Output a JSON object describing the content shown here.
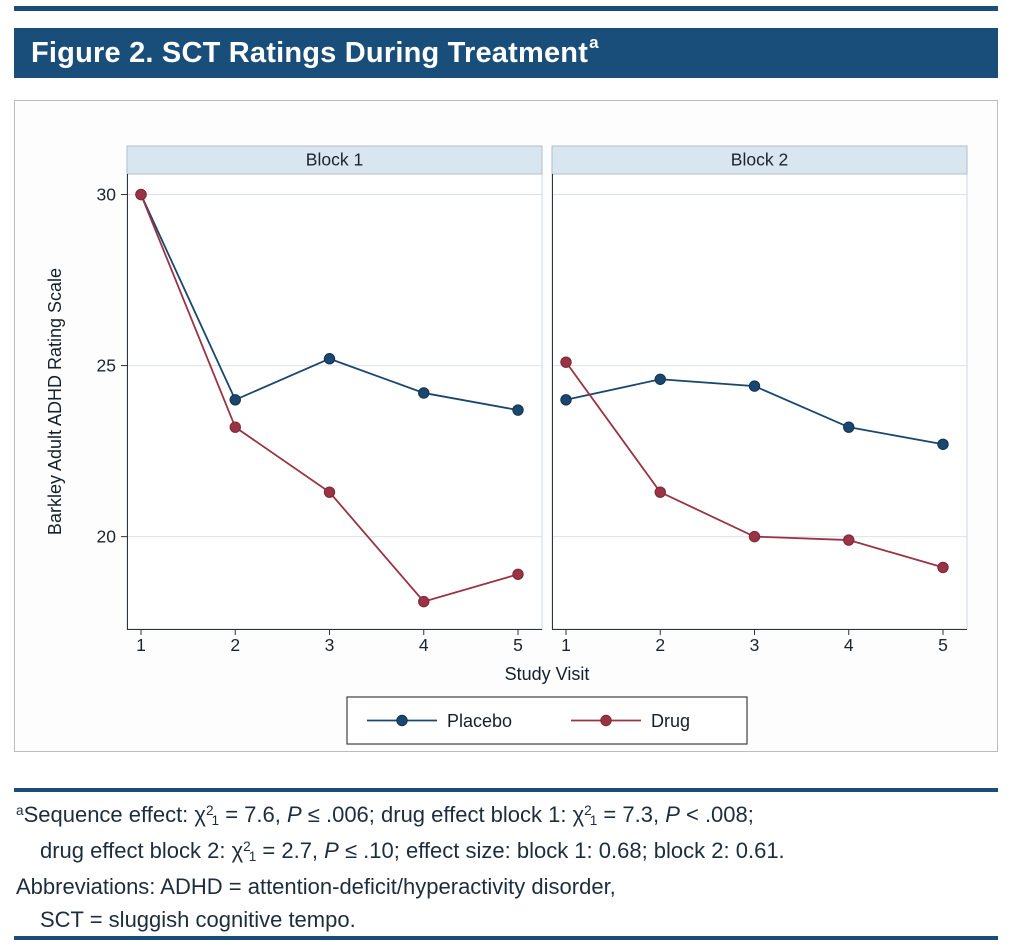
{
  "page": {
    "accent_color": "#1a4e7a",
    "background": "#ffffff"
  },
  "title": {
    "text": "Figure 2. SCT Ratings During Treatment",
    "superscript": "a"
  },
  "chart_data": {
    "type": "line",
    "xlabel": "Study Visit",
    "ylabel": "Barkley Adult ADHD Rating Scale",
    "x": [
      1,
      2,
      3,
      4,
      5
    ],
    "yticks": [
      20,
      25,
      30
    ],
    "ylim": [
      17.3,
      30.6
    ],
    "grid": true,
    "panels": [
      {
        "title": "Block 1",
        "series": [
          {
            "name": "Placebo",
            "values": [
              30.0,
              24.0,
              25.2,
              24.2,
              23.7
            ]
          },
          {
            "name": "Drug",
            "values": [
              30.0,
              23.2,
              21.3,
              18.1,
              18.9
            ]
          }
        ]
      },
      {
        "title": "Block 2",
        "series": [
          {
            "name": "Placebo",
            "values": [
              24.0,
              24.6,
              24.4,
              23.2,
              22.7
            ]
          },
          {
            "name": "Drug",
            "values": [
              25.1,
              21.3,
              20.0,
              19.9,
              19.1
            ]
          }
        ]
      }
    ],
    "series_colors": {
      "Placebo": "#1a476f",
      "Drug": "#9a3344"
    },
    "series_stroke": {
      "Placebo": "#13324e",
      "Drug": "#7c2836"
    },
    "legend": {
      "position": "bottom",
      "entries": [
        "Placebo",
        "Drug"
      ]
    },
    "colors": {
      "band_fill": "#d9e5ef",
      "band_stroke": "#aebfcc",
      "grid": "#dbe2e8",
      "axis": "#2e3338",
      "tick_label": "#1c242c",
      "plot_bg": "#ffffff",
      "plot_border": "#cfd8df",
      "legend_border": "#3f3f3f"
    }
  },
  "footnotes": {
    "lines": [
      {
        "indent": false,
        "segments": [
          {
            "t": "a",
            "s": "sup"
          },
          {
            "t": "Sequence effect: χ"
          },
          {
            "t": "2",
            "s": "sup"
          },
          {
            "t": "1",
            "s": "sub"
          },
          {
            "t": " = 7.6, "
          },
          {
            "t": "P",
            "s": "i"
          },
          {
            "t": " ≤ .006; drug effect block 1: χ"
          },
          {
            "t": "2",
            "s": "sup"
          },
          {
            "t": "1",
            "s": "sub"
          },
          {
            "t": " = 7.3, "
          },
          {
            "t": "P",
            "s": "i"
          },
          {
            "t": " < .008;"
          }
        ]
      },
      {
        "indent": true,
        "segments": [
          {
            "t": "drug effect block 2: χ"
          },
          {
            "t": "2",
            "s": "sup"
          },
          {
            "t": "1",
            "s": "sub"
          },
          {
            "t": " = 2.7, "
          },
          {
            "t": "P",
            "s": "i"
          },
          {
            "t": " ≤ .10; effect size: block 1: 0.68; block 2: 0.61."
          }
        ]
      },
      {
        "indent": false,
        "segments": [
          {
            "t": "Abbreviations: ADHD = attention-deficit/hyperactivity disorder,"
          }
        ]
      },
      {
        "indent": true,
        "segments": [
          {
            "t": "SCT = sluggish cognitive tempo."
          }
        ]
      }
    ]
  }
}
